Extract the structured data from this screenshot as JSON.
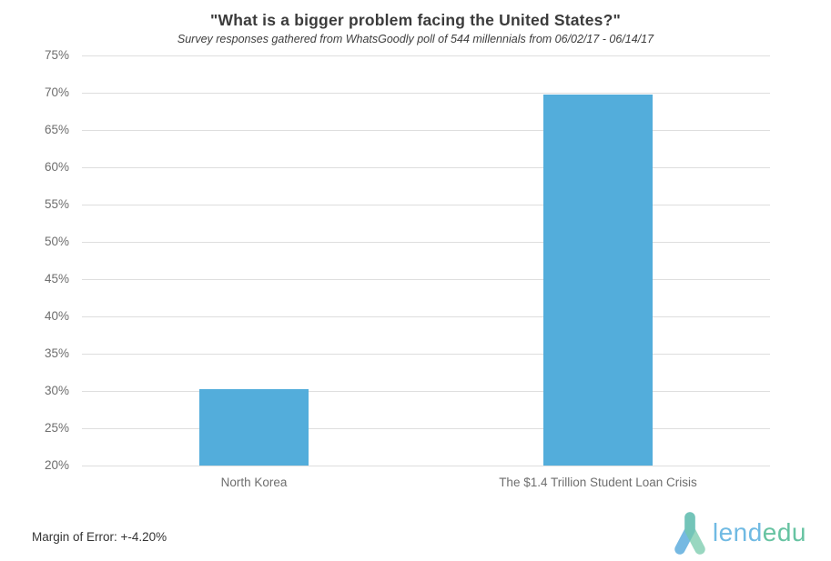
{
  "chart_data": {
    "type": "bar",
    "title": "\"What is a bigger problem facing the United States?\"",
    "subtitle": "Survey responses gathered from WhatsGoodly poll of 544 millennials from 06/02/17 - 06/14/17",
    "categories": [
      "North Korea",
      "The $1.4 Trillion Student Loan Crisis"
    ],
    "values": [
      30.3,
      69.7
    ],
    "value_unit": "%",
    "ylim": [
      20,
      75
    ],
    "ytick_step": 5,
    "ytick_suffix": "%",
    "grid": true,
    "legend": false,
    "bar_color": "#53addb",
    "gridline_color": "#dedede",
    "axis_label_color": "#6e6e6e"
  },
  "footer": {
    "margin_of_error": "Margin of Error: +-4.20%",
    "logo": {
      "lend": "lend",
      "edu": "edu",
      "blue": "#70bae3",
      "green": "#67c3a2",
      "mark_blue": "#58a9dc",
      "mark_green": "#72c8a8"
    }
  }
}
